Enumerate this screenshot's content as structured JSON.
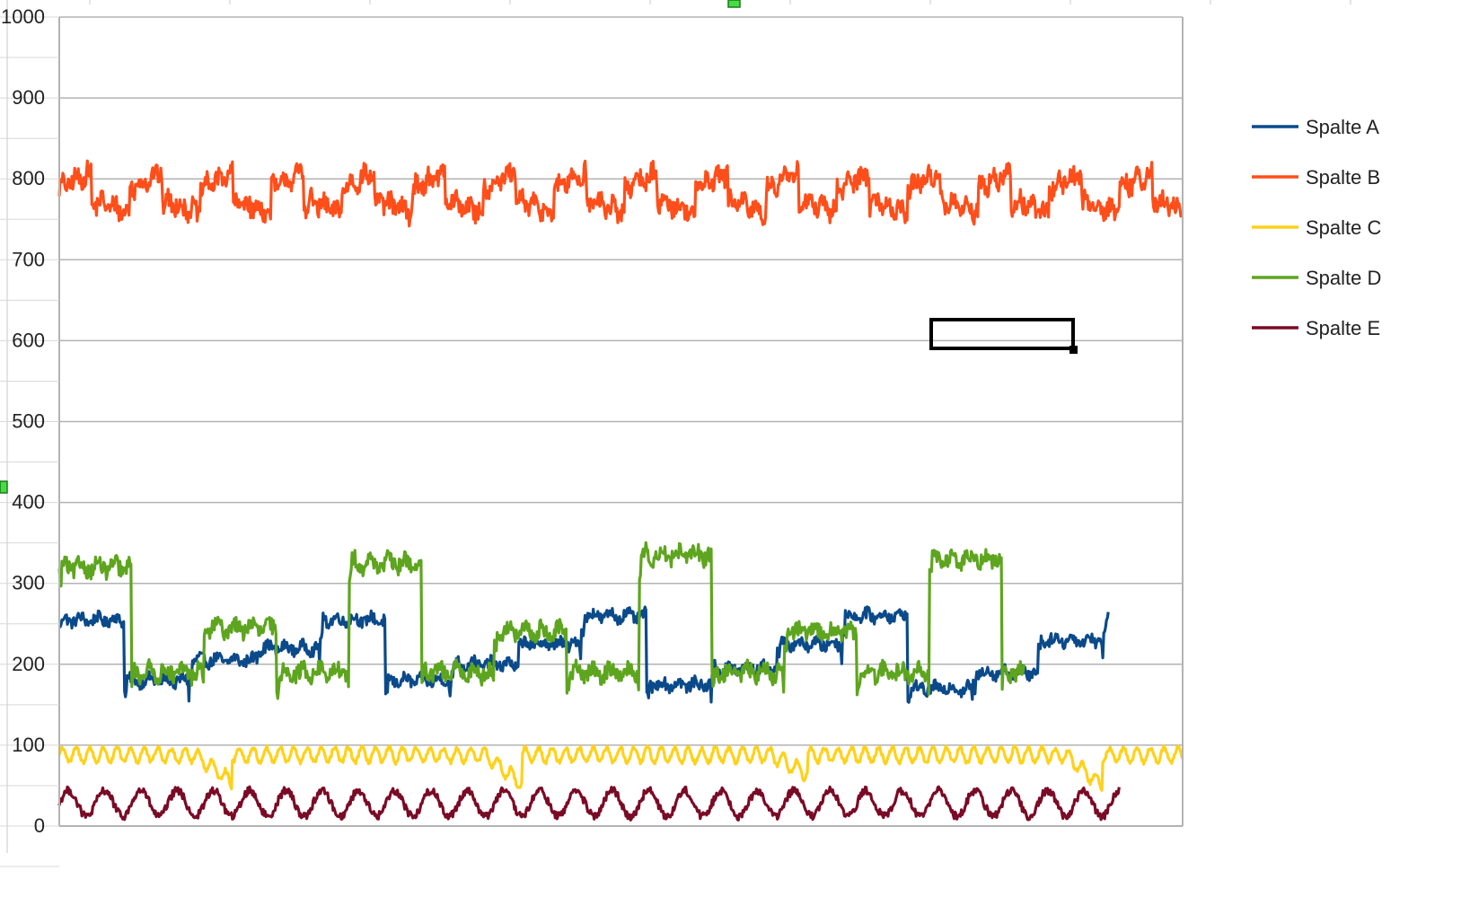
{
  "chart_data": {
    "type": "line",
    "title": "",
    "xlabel": "",
    "ylabel": "",
    "ylim": [
      0,
      1000
    ],
    "y_ticks": [
      "0",
      "100",
      "200",
      "300",
      "400",
      "500",
      "600",
      "700",
      "800",
      "900",
      "1000"
    ],
    "grid": true,
    "legend_position": "right",
    "x_points": 1240,
    "series": [
      {
        "name": "Spalte A",
        "color": "#0b4a8a",
        "pattern": "steps",
        "start_index": 0,
        "end_index": 1158,
        "levels": [
          255,
          180,
          205,
          220,
          255,
          180,
          200,
          225,
          260,
          175,
          195,
          225,
          260,
          170,
          190,
          230
        ],
        "block_length": 72,
        "noise": 7,
        "spike_depth": 20
      },
      {
        "name": "Spalte B",
        "color": "#ff4e1a",
        "pattern": "sawtooth",
        "start_index": 0,
        "end_index": 1240,
        "base": 748,
        "amplitude": 95,
        "period": 78,
        "noise": 12
      },
      {
        "name": "Spalte C",
        "color": "#ffd11a",
        "pattern": "wave",
        "start_index": 0,
        "end_index": 1240,
        "base": 88,
        "amplitude": 9,
        "period": 15,
        "dips": [
          [
            190,
            55
          ],
          [
            510,
            52
          ],
          [
            825,
            65
          ],
          [
            1150,
            50
          ]
        ]
      },
      {
        "name": "Spalte D",
        "color": "#5ea51f",
        "pattern": "steps",
        "start_index": 0,
        "end_index": 1065,
        "levels": [
          320,
          190,
          245,
          190,
          325,
          190,
          240,
          190,
          335,
          190,
          240,
          190,
          330,
          190
        ],
        "block_length": 80,
        "noise": 10,
        "spike_depth": 20
      },
      {
        "name": "Spalte E",
        "color": "#7a0a26",
        "pattern": "wave",
        "start_index": 0,
        "end_index": 1170,
        "base": 28,
        "amplitude": 16,
        "period": 40,
        "dips": []
      }
    ]
  }
}
